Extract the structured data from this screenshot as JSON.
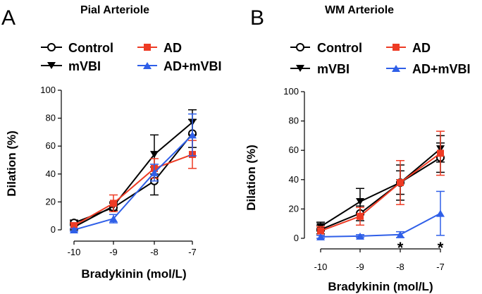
{
  "colors": {
    "control": "#000000",
    "mvbi": "#000000",
    "ad": "#ee3b24",
    "ad_mvbi": "#2f5fe8"
  },
  "legend_labels": {
    "control": "Control",
    "mvbi": "mVBI",
    "ad": "AD",
    "ad_mvbi": "AD+mVBI"
  },
  "chart_data": [
    {
      "type": "line",
      "panel": "A",
      "title": "Pial Arteriole",
      "xlabel": "Bradykinin (mol/L)",
      "ylabel": "Dilation (%)",
      "x": [
        -10,
        -9,
        -8,
        -7
      ],
      "x_tick_labels": [
        "-10",
        "-9",
        "-8",
        "-7"
      ],
      "ylim": [
        0,
        100
      ],
      "y_ticks": [
        0,
        20,
        40,
        60,
        80,
        100
      ],
      "series": [
        {
          "name": "Control",
          "key": "control",
          "marker": "circle-open",
          "values": [
            5,
            16,
            35,
            69
          ],
          "errors": [
            2,
            3,
            10,
            10
          ]
        },
        {
          "name": "mVBI",
          "key": "mvbi",
          "marker": "triangle-down",
          "values": [
            2,
            17,
            54,
            77
          ],
          "errors": [
            2,
            3,
            14,
            9
          ]
        },
        {
          "name": "AD",
          "key": "ad",
          "marker": "square",
          "values": [
            3,
            19,
            44,
            54
          ],
          "errors": [
            2,
            6,
            7,
            10
          ]
        },
        {
          "name": "AD+mVBI",
          "key": "ad_mvbi",
          "marker": "triangle-up",
          "values": [
            0,
            8,
            41,
            68
          ],
          "errors": [
            1,
            3,
            6,
            15
          ]
        }
      ],
      "annotations": []
    },
    {
      "type": "line",
      "panel": "B",
      "title": "WM Arteriole",
      "xlabel": "Bradykinin (mol/L)",
      "ylabel": "Dilation (%)",
      "x": [
        -10,
        -9,
        -8,
        -7
      ],
      "x_tick_labels": [
        "-10",
        "-9",
        "-8",
        "-7"
      ],
      "ylim": [
        0,
        100
      ],
      "y_ticks": [
        0,
        20,
        40,
        60,
        80,
        100
      ],
      "series": [
        {
          "name": "Control",
          "key": "control",
          "marker": "circle-open",
          "values": [
            6,
            17,
            38,
            55
          ],
          "errors": [
            3,
            5,
            8,
            10
          ]
        },
        {
          "name": "mVBI",
          "key": "mvbi",
          "marker": "triangle-down",
          "values": [
            8,
            25,
            38,
            61
          ],
          "errors": [
            3,
            9,
            12,
            9
          ]
        },
        {
          "name": "AD",
          "key": "ad",
          "marker": "square",
          "values": [
            5,
            15,
            38,
            58
          ],
          "errors": [
            3,
            6,
            15,
            15
          ]
        },
        {
          "name": "AD+mVBI",
          "key": "ad_mvbi",
          "marker": "triangle-up",
          "values": [
            1,
            1.5,
            2.5,
            17
          ],
          "errors": [
            1,
            1,
            2,
            15
          ]
        }
      ],
      "annotations": [
        {
          "x": -8,
          "text": "*"
        },
        {
          "x": -7,
          "text": "*"
        }
      ]
    }
  ]
}
